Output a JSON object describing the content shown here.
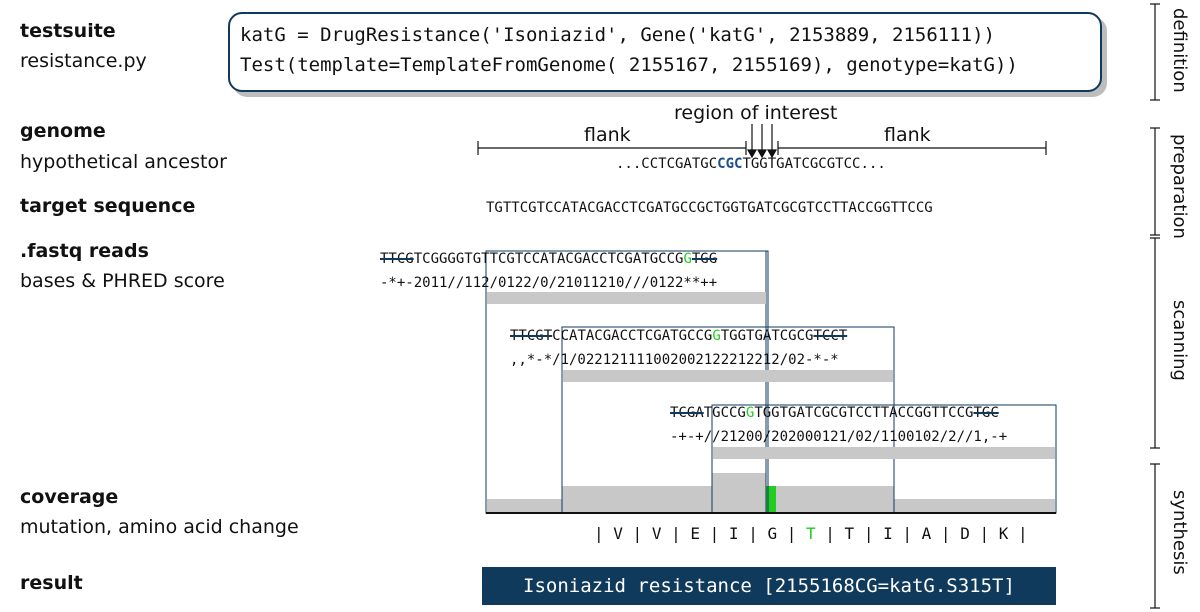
{
  "labels": {
    "testsuite": "testsuite",
    "testsuite_sub": "resistance.py",
    "genome": "genome",
    "genome_sub": "hypothetical ancestor",
    "target": "target sequence",
    "fastq": ".fastq reads",
    "fastq_sub": "bases & PHRED score",
    "coverage": "coverage",
    "coverage_sub": "mutation, amino acid change",
    "result": "result"
  },
  "code": {
    "line1": "katG = DrugResistance('Isoniazid', Gene('katG', 2153889, 2156111))",
    "line2": "Test(template=TemplateFromGenome( 2155167, 2155169), genotype=katG))"
  },
  "genome": {
    "region_of_interest": "region of interest",
    "flank_left": "flank",
    "flank_right": "flank",
    "seq_pre": "...CCTCGATGC",
    "seq_hl": "CGC",
    "seq_post": "TGGTGATCGCGTCC..."
  },
  "target_sequence": "TGTTCGTCCATACGACCTCGATGCCGCTGGTGATCGCGTCCTTACCGGTTCCG",
  "reads": [
    {
      "clip_l": "TTCG",
      "mid_l": "TCGGGGTGTTCGTCCATACGACCTCGATGCCG",
      "mut": "G",
      "mid_r": "",
      "clip_r": "TGG",
      "phred": "-*+-2011//112/0122/0/21011210///0122**++"
    },
    {
      "clip_l": "TTCGT",
      "mid_l": "CCATACGACCTCGATGCCG",
      "mut": "G",
      "mid_r": "TGGTGATCGCG",
      "clip_r": "TCCT",
      "phred": ",,*-*/1/022121111002002122212212/02-*-*"
    },
    {
      "clip_l": "TCGA",
      "mid_l": "TGCCG",
      "mut": "G",
      "mid_r": "TGGTGATCGCGTCCTTACCGGTTCCG",
      "clip_r": "TGC",
      "phred": "-+-+//21200/202000121/02/1100102/2//1,-+"
    }
  ],
  "amino_acids": [
    "V",
    "V",
    "E",
    "I",
    "G",
    "T",
    "T",
    "I",
    "A",
    "D",
    "K"
  ],
  "mutated_aa_index": 5,
  "coverage": {
    "values": [
      1,
      2,
      3,
      2,
      1
    ],
    "mutation_color": "#22cc22",
    "bar_color": "#c8c8c8"
  },
  "result": "Isoniazid resistance [2155168CG=katG.S315T]",
  "stages": {
    "definition": "definition",
    "preparation": "preparation",
    "scanning": "scanning",
    "synthesis": "synthesis"
  },
  "colors": {
    "accent": "#0f3a5c",
    "highlight": "#1d4f8c",
    "mutation": "#22cc22",
    "coverage_gray": "#c8c8c8"
  }
}
